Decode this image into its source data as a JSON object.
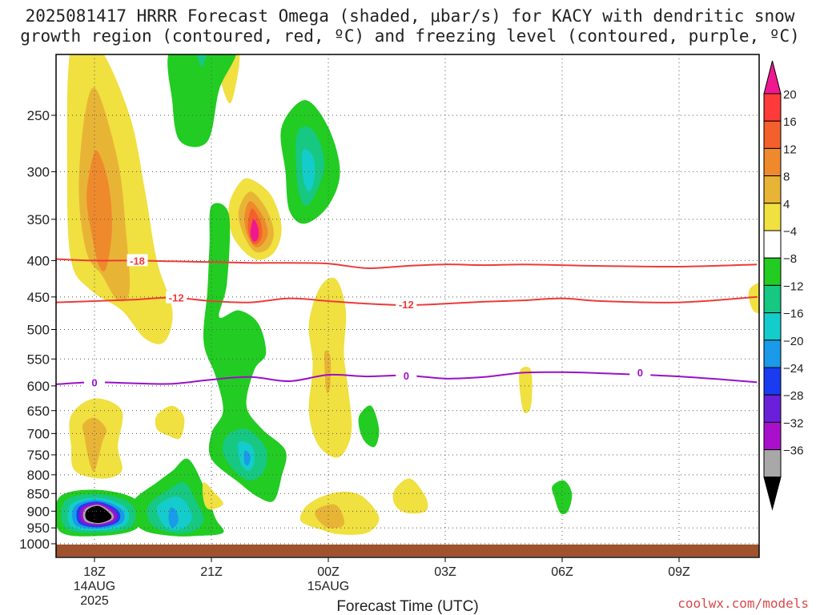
{
  "title_line1": "2025081417 HRRR Forecast Omega (shaded, μbar/s) for KACY with dendritic snow",
  "title_line2": "growth region (contoured, red, ºC) and freezing level (contoured, purple, ºC)",
  "credit": "coolwx.com/models",
  "chart_data": {
    "type": "contour",
    "title": "2025081417 HRRR Forecast Omega (shaded, μbar/s) for KACY with dendritic snow growth region (contoured, red, ºC) and freezing level (contoured, purple, ºC)",
    "xlabel": "Forecast Time (UTC)",
    "ylabel": "",
    "x_ticks": [
      {
        "hour": 18,
        "label": "18Z",
        "sub1": "14AUG",
        "sub2": "2025"
      },
      {
        "hour": 21,
        "label": "21Z",
        "sub1": "",
        "sub2": ""
      },
      {
        "hour": 24,
        "label": "00Z",
        "sub1": "15AUG",
        "sub2": ""
      },
      {
        "hour": 27,
        "label": "03Z",
        "sub1": "",
        "sub2": ""
      },
      {
        "hour": 30,
        "label": "06Z",
        "sub1": "",
        "sub2": ""
      },
      {
        "hour": 33,
        "label": "09Z",
        "sub1": "",
        "sub2": ""
      }
    ],
    "xlim_hours": [
      17,
      35
    ],
    "y_ticks": [
      "250",
      "300",
      "350",
      "400",
      "450",
      "500",
      "550",
      "600",
      "650",
      "700",
      "750",
      "800",
      "850",
      "900",
      "950",
      "1000"
    ],
    "y_tick_values": [
      250,
      300,
      350,
      400,
      450,
      500,
      550,
      600,
      650,
      700,
      750,
      800,
      850,
      900,
      950,
      1000
    ],
    "ylim_hpa": [
      200,
      1013
    ],
    "y_scale": "log, inverted",
    "grid": true,
    "colorbar": {
      "labels": [
        "20",
        "16",
        "12",
        "8",
        "4",
        "−4",
        "−8",
        "−12",
        "−16",
        "−20",
        "−24",
        "−28",
        "−32",
        "−36"
      ],
      "colors": [
        "#ff3a3a",
        "#f4602c",
        "#ee8a2c",
        "#e8b436",
        "#f0e040",
        "#ffffff",
        "#22cc22",
        "#16c882",
        "#14cccc",
        "#1a9ae8",
        "#1a3cf0",
        "#6a20d8",
        "#aa10cc",
        "#a8a8a8"
      ],
      "top_arrow": "#f01890",
      "bottom_arrow": "#000000"
    },
    "dendritic_contours": [
      {
        "label": "-18",
        "color": "#ee3a3a",
        "pressure_hpa": [
          398,
          400,
          400,
          401,
          402,
          403,
          403,
          404,
          410,
          407,
          405,
          406,
          405,
          406,
          407,
          408,
          405
        ],
        "hours": [
          17,
          18,
          19,
          20,
          21,
          22,
          23,
          24,
          25,
          26,
          27,
          28,
          29,
          30,
          31,
          33,
          35
        ]
      },
      {
        "label": "-12",
        "color": "#ee3a3a",
        "pressure_hpa": [
          458,
          456,
          454,
          451,
          456,
          458,
          452,
          456,
          460,
          462,
          460,
          457,
          455,
          452,
          456,
          458,
          450
        ],
        "hours": [
          17,
          18,
          19,
          20,
          21,
          22,
          23,
          24,
          25,
          26,
          27,
          28,
          29,
          30,
          31,
          33,
          35
        ]
      }
    ],
    "freezing_level": {
      "label": "0",
      "color": "#9a10c8",
      "pressure_hpa": [
        597,
        593,
        595,
        596,
        588,
        583,
        591,
        579,
        582,
        580,
        586,
        583,
        575,
        574,
        576,
        582,
        593
      ],
      "hours": [
        17,
        18,
        19,
        20,
        21,
        22,
        23,
        24,
        25,
        26,
        27,
        28,
        29,
        30,
        31,
        33,
        35
      ]
    },
    "omega_regions": [
      {
        "category": "4 to 8",
        "description": "upper ascent plume near 18Z",
        "hour_range": [
          17.3,
          20.0
        ],
        "pressure_range": [
          200,
          525
        ],
        "peak": "12 to 16"
      },
      {
        "category": "4 to 8",
        "description": "mid-level ascent near 22Z",
        "hour_range": [
          21.4,
          22.8
        ],
        "pressure_range": [
          305,
          395
        ],
        "peak": "above 20"
      },
      {
        "category": "-4 to -8",
        "description": "upper descent near 20Z",
        "hour_range": [
          20.0,
          21.6
        ],
        "pressure_range": [
          200,
          275
        ],
        "peak": "-12 to -16"
      },
      {
        "category": "-4 to -8",
        "description": "descent near 23Z",
        "hour_range": [
          22.2,
          24.2
        ],
        "pressure_range": [
          240,
          360
        ],
        "peak": "-12 to -16"
      },
      {
        "category": "-4 to -8",
        "description": "descent column 21Z–23Z",
        "hour_range": [
          21.0,
          23.0
        ],
        "pressure_range": [
          320,
          870
        ],
        "peak": "-16 to -20"
      },
      {
        "category": "-4 to -8",
        "description": "low-level descent near 20Z",
        "hour_range": [
          19.0,
          21.3
        ],
        "pressure_range": [
          760,
          960
        ],
        "peak": "-16 to -20"
      },
      {
        "category": "below -36",
        "description": "strong low-level descent near 18Z",
        "hour_range": [
          17.1,
          19.1
        ],
        "pressure_range": [
          855,
          975
        ],
        "peak": "below -36"
      },
      {
        "category": "4 to 8",
        "description": "low-level ascent near 00Z",
        "hour_range": [
          23.3,
          25.6
        ],
        "pressure_range": [
          840,
          975
        ],
        "peak": "8 to 12"
      },
      {
        "category": "4 to 8",
        "description": "ascent column near 00Z",
        "hour_range": [
          23.5,
          24.6
        ],
        "pressure_range": [
          425,
          755
        ],
        "peak": "8 to 12"
      },
      {
        "category": "-4 to -8",
        "description": "small descent near 06Z",
        "hour_range": [
          29.7,
          30.3
        ],
        "pressure_range": [
          820,
          910
        ],
        "peak": "-4 to -8"
      }
    ],
    "terrain_color": "#a0522d"
  }
}
